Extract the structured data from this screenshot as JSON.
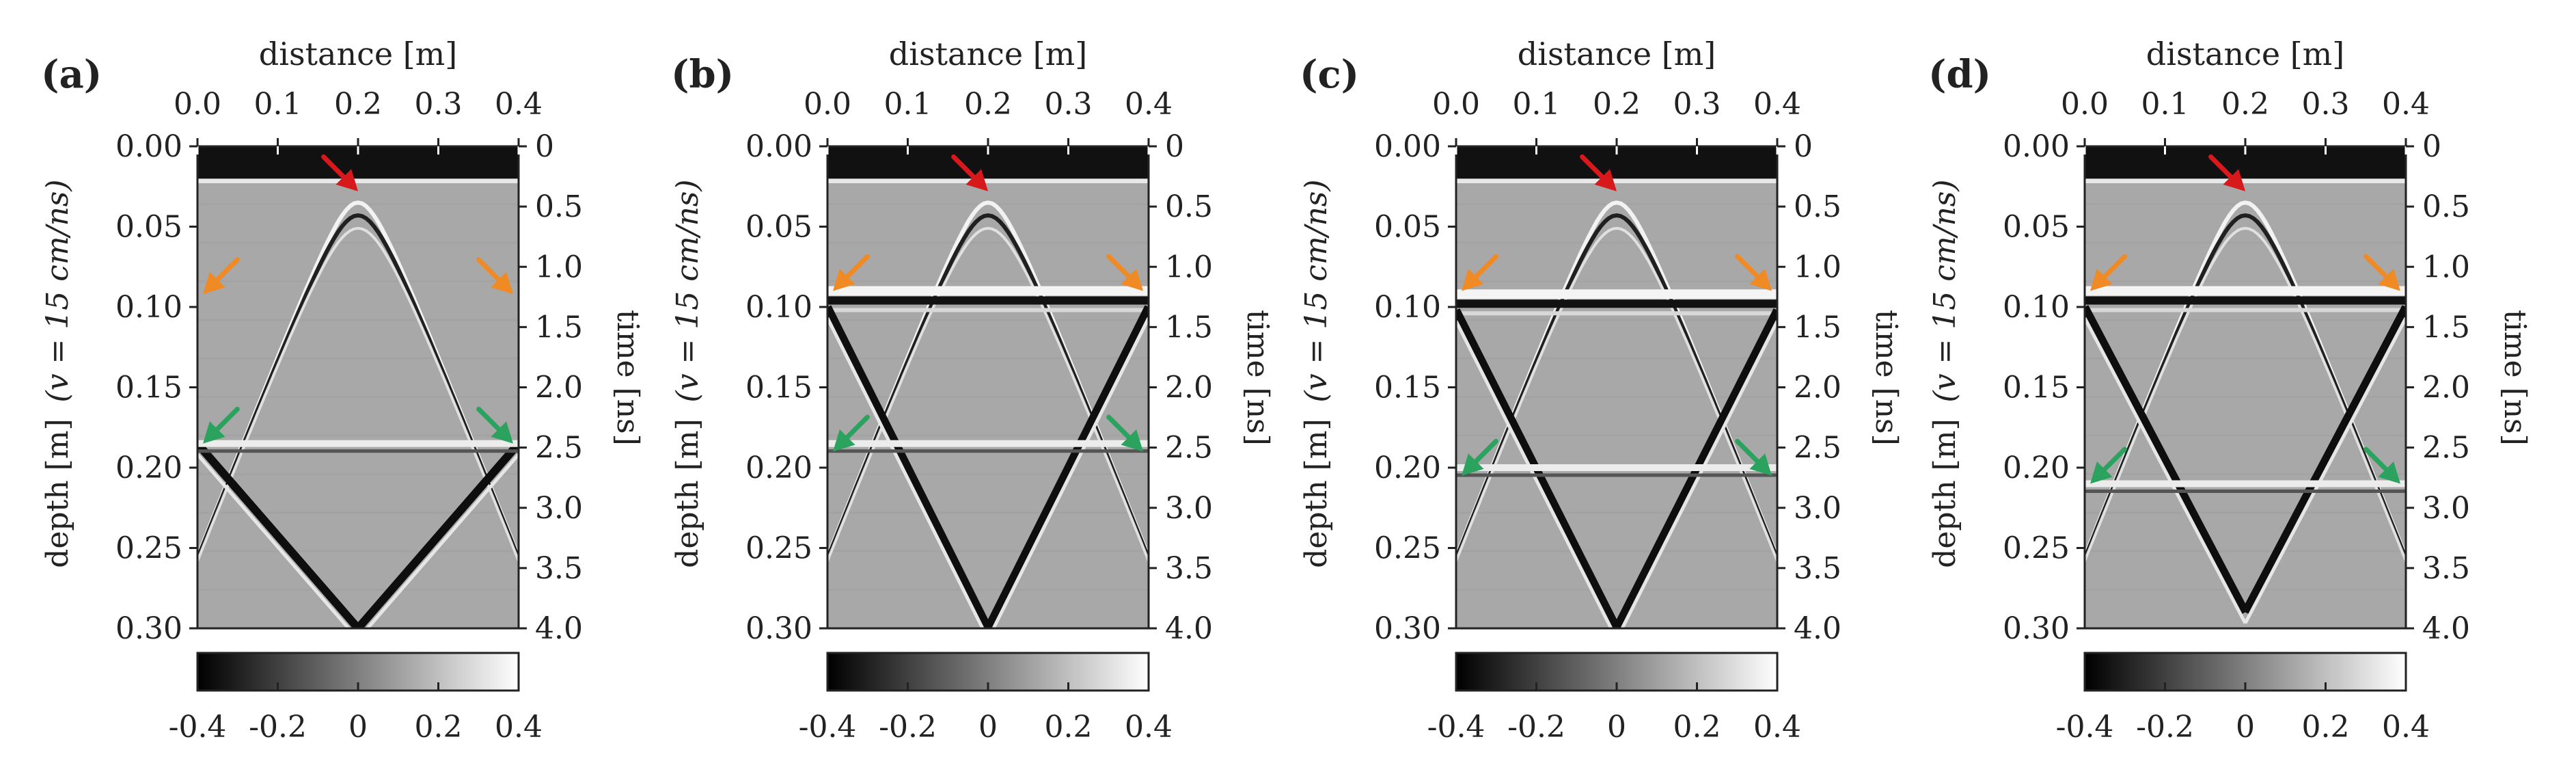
{
  "figure": {
    "panel_count": 4
  },
  "chart_data": [
    {
      "type": "heatmap",
      "panel_label": "(a)",
      "panel_letter": "a",
      "xlabel": "distance [m]",
      "ylabel": "depth [m]",
      "ylabel_extra": "(v = 15 cm/ns)",
      "y2label": "time [ns]",
      "x_ticks": [
        "0.0",
        "0.1",
        "0.2",
        "0.3",
        "0.4"
      ],
      "y_ticks": [
        "0.00",
        "0.05",
        "0.10",
        "0.15",
        "0.20",
        "0.25",
        "0.30"
      ],
      "y2_ticks": [
        "0",
        "0.5",
        "1.0",
        "1.5",
        "2.0",
        "2.5",
        "3.0",
        "3.5",
        "4.0"
      ],
      "xlim": [
        0.0,
        0.4
      ],
      "ylim": [
        0.0,
        0.3
      ],
      "y2lim": [
        0.0,
        4.0
      ],
      "colorbar": {
        "min": -0.4,
        "max": 0.4,
        "ticks": [
          "-0.4",
          "-0.2",
          "0",
          "0.2",
          "0.4"
        ],
        "colormap": "gray"
      },
      "features": {
        "bar_depth": 0.02,
        "hyperbola_apex": [
          0.2,
          0.035
        ],
        "interface_depth": 0.185,
        "upper_interface_depth": null,
        "v_reflection_apex": [
          0.2,
          0.3
        ]
      },
      "arrows": [
        {
          "color": "#d7191c",
          "tip": [
            0.2,
            0.028
          ],
          "dir": "down-right"
        },
        {
          "color": "#f08a24",
          "tip": [
            0.0,
            0.092
          ],
          "dir": "down-left"
        },
        {
          "color": "#f08a24",
          "tip": [
            0.4,
            0.092
          ],
          "dir": "down-right"
        },
        {
          "color": "#2ca25f",
          "tip": [
            0.0,
            0.185
          ],
          "dir": "down-left"
        },
        {
          "color": "#2ca25f",
          "tip": [
            0.4,
            0.185
          ],
          "dir": "down-right"
        }
      ]
    },
    {
      "type": "heatmap",
      "panel_label": "(b)",
      "panel_letter": "b",
      "xlabel": "distance [m]",
      "ylabel": "depth [m]",
      "ylabel_extra": "(v = 15 cm/ns)",
      "y2label": "time [ns]",
      "x_ticks": [
        "0.0",
        "0.1",
        "0.2",
        "0.3",
        "0.4"
      ],
      "y_ticks": [
        "0.00",
        "0.05",
        "0.10",
        "0.15",
        "0.20",
        "0.25",
        "0.30"
      ],
      "y2_ticks": [
        "0",
        "0.5",
        "1.0",
        "1.5",
        "2.0",
        "2.5",
        "3.0",
        "3.5",
        "4.0"
      ],
      "xlim": [
        0.0,
        0.4
      ],
      "ylim": [
        0.0,
        0.3
      ],
      "y2lim": [
        0.0,
        4.0
      ],
      "colorbar": {
        "min": -0.4,
        "max": 0.4,
        "ticks": [
          "-0.4",
          "-0.2",
          "0",
          "0.2",
          "0.4"
        ],
        "colormap": "gray"
      },
      "features": {
        "bar_depth": 0.02,
        "hyperbola_apex": [
          0.2,
          0.035
        ],
        "interface_depth": 0.185,
        "upper_interface_depth": 0.09,
        "v_reflection_apex": [
          0.2,
          0.3
        ]
      },
      "arrows": [
        {
          "color": "#d7191c",
          "tip": [
            0.2,
            0.028
          ],
          "dir": "down-right"
        },
        {
          "color": "#f08a24",
          "tip": [
            0.0,
            0.09
          ],
          "dir": "down-left"
        },
        {
          "color": "#f08a24",
          "tip": [
            0.4,
            0.09
          ],
          "dir": "down-right"
        },
        {
          "color": "#2ca25f",
          "tip": [
            0.0,
            0.19
          ],
          "dir": "down-left"
        },
        {
          "color": "#2ca25f",
          "tip": [
            0.4,
            0.19
          ],
          "dir": "down-right"
        }
      ]
    },
    {
      "type": "heatmap",
      "panel_label": "(c)",
      "panel_letter": "c",
      "xlabel": "distance [m]",
      "ylabel": "depth [m]",
      "ylabel_extra": "(v = 15 cm/ns)",
      "y2label": "time [ns]",
      "x_ticks": [
        "0.0",
        "0.1",
        "0.2",
        "0.3",
        "0.4"
      ],
      "y_ticks": [
        "0.00",
        "0.05",
        "0.10",
        "0.15",
        "0.20",
        "0.25",
        "0.30"
      ],
      "y2_ticks": [
        "0",
        "0.5",
        "1.0",
        "1.5",
        "2.0",
        "2.5",
        "3.0",
        "3.5",
        "4.0"
      ],
      "xlim": [
        0.0,
        0.4
      ],
      "ylim": [
        0.0,
        0.3
      ],
      "y2lim": [
        0.0,
        4.0
      ],
      "colorbar": {
        "min": -0.4,
        "max": 0.4,
        "ticks": [
          "-0.4",
          "-0.2",
          "0",
          "0.2",
          "0.4"
        ],
        "colormap": "gray"
      },
      "features": {
        "bar_depth": 0.02,
        "hyperbola_apex": [
          0.2,
          0.035
        ],
        "interface_depth": 0.2,
        "upper_interface_depth": 0.092,
        "v_reflection_apex": [
          0.2,
          0.3
        ]
      },
      "arrows": [
        {
          "color": "#d7191c",
          "tip": [
            0.2,
            0.028
          ],
          "dir": "down-right"
        },
        {
          "color": "#f08a24",
          "tip": [
            0.0,
            0.09
          ],
          "dir": "down-left"
        },
        {
          "color": "#f08a24",
          "tip": [
            0.4,
            0.09
          ],
          "dir": "down-right"
        },
        {
          "color": "#2ca25f",
          "tip": [
            0.0,
            0.205
          ],
          "dir": "down-left"
        },
        {
          "color": "#2ca25f",
          "tip": [
            0.4,
            0.205
          ],
          "dir": "down-right"
        }
      ]
    },
    {
      "type": "heatmap",
      "panel_label": "(d)",
      "panel_letter": "d",
      "xlabel": "distance [m]",
      "ylabel": "depth [m]",
      "ylabel_extra": "(v = 15 cm/ns)",
      "y2label": "time [ns]",
      "x_ticks": [
        "0.0",
        "0.1",
        "0.2",
        "0.3",
        "0.4"
      ],
      "y_ticks": [
        "0.00",
        "0.05",
        "0.10",
        "0.15",
        "0.20",
        "0.25",
        "0.30"
      ],
      "y2_ticks": [
        "0",
        "0.5",
        "1.0",
        "1.5",
        "2.0",
        "2.5",
        "3.0",
        "3.5",
        "4.0"
      ],
      "xlim": [
        0.0,
        0.4
      ],
      "ylim": [
        0.0,
        0.3
      ],
      "y2lim": [
        0.0,
        4.0
      ],
      "colorbar": {
        "min": -0.4,
        "max": 0.4,
        "ticks": [
          "-0.4",
          "-0.2",
          "0",
          "0.2",
          "0.4"
        ],
        "colormap": "gray"
      },
      "features": {
        "bar_depth": 0.02,
        "hyperbola_apex": [
          0.2,
          0.035
        ],
        "interface_depth": 0.21,
        "upper_interface_depth": 0.09,
        "v_reflection_apex": [
          0.2,
          0.29
        ]
      },
      "arrows": [
        {
          "color": "#d7191c",
          "tip": [
            0.2,
            0.028
          ],
          "dir": "down-right"
        },
        {
          "color": "#f08a24",
          "tip": [
            0.0,
            0.09
          ],
          "dir": "down-left"
        },
        {
          "color": "#f08a24",
          "tip": [
            0.4,
            0.09
          ],
          "dir": "down-right"
        },
        {
          "color": "#2ca25f",
          "tip": [
            0.0,
            0.21
          ],
          "dir": "down-left"
        },
        {
          "color": "#2ca25f",
          "tip": [
            0.4,
            0.21
          ],
          "dir": "down-right"
        }
      ]
    }
  ]
}
